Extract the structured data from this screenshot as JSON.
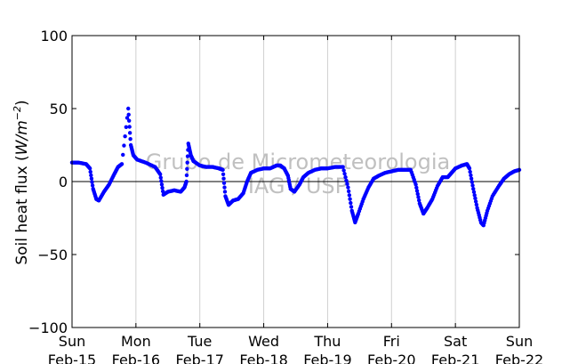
{
  "chart_data": {
    "type": "scatter",
    "ylabel": "Soil heat flux (W/m⁻²)",
    "ylabel_text": "Soil heat flux (",
    "ylabel_math": "W/m",
    "ylabel_exp": "−2",
    "ylabel_close": ")",
    "ylim": [
      -100,
      100
    ],
    "yticks": [
      {
        "value": 100,
        "label": "100"
      },
      {
        "value": 50,
        "label": "50"
      },
      {
        "value": 0,
        "label": "0"
      },
      {
        "value": -50,
        "label": "−50"
      },
      {
        "value": -100,
        "label": "−100"
      }
    ],
    "xlim": [
      0,
      7
    ],
    "xticks": [
      {
        "value": 0,
        "day": "Sun",
        "date": "Feb-15"
      },
      {
        "value": 1,
        "day": "Mon",
        "date": "Feb-16"
      },
      {
        "value": 2,
        "day": "Tue",
        "date": "Feb-17"
      },
      {
        "value": 3,
        "day": "Wed",
        "date": "Feb-18"
      },
      {
        "value": 4,
        "day": "Thu",
        "date": "Feb-19"
      },
      {
        "value": 5,
        "day": "Fri",
        "date": "Feb-20"
      },
      {
        "value": 6,
        "day": "Sat",
        "date": "Feb-21"
      },
      {
        "value": 7,
        "day": "Sun",
        "date": "Feb-22"
      }
    ],
    "grid": "vertical",
    "zero_line": true,
    "marker_color": "#0000ff",
    "watermark": [
      "Grupo de Micrometeorologia",
      "IAG / USP"
    ],
    "series_points": [
      [
        0.0,
        13
      ],
      [
        0.1,
        13
      ],
      [
        0.22,
        12
      ],
      [
        0.28,
        9
      ],
      [
        0.33,
        -5
      ],
      [
        0.38,
        -12
      ],
      [
        0.42,
        -13
      ],
      [
        0.5,
        -7
      ],
      [
        0.58,
        -2
      ],
      [
        0.66,
        5
      ],
      [
        0.72,
        10
      ],
      [
        0.78,
        12
      ],
      [
        0.88,
        50
      ],
      [
        0.92,
        25
      ],
      [
        0.96,
        18
      ],
      [
        1.02,
        15
      ],
      [
        1.15,
        13
      ],
      [
        1.3,
        10
      ],
      [
        1.38,
        5
      ],
      [
        1.43,
        -9
      ],
      [
        1.5,
        -7
      ],
      [
        1.6,
        -6
      ],
      [
        1.7,
        -7
      ],
      [
        1.76,
        -4
      ],
      [
        1.79,
        0
      ],
      [
        1.82,
        26
      ],
      [
        1.86,
        18
      ],
      [
        1.9,
        14
      ],
      [
        2.0,
        11
      ],
      [
        2.1,
        10
      ],
      [
        2.2,
        10
      ],
      [
        2.3,
        9
      ],
      [
        2.36,
        8
      ],
      [
        2.4,
        -10
      ],
      [
        2.45,
        -16
      ],
      [
        2.52,
        -13
      ],
      [
        2.6,
        -12
      ],
      [
        2.68,
        -8
      ],
      [
        2.74,
        0
      ],
      [
        2.8,
        6
      ],
      [
        2.9,
        8
      ],
      [
        3.0,
        9
      ],
      [
        3.1,
        9
      ],
      [
        3.2,
        11
      ],
      [
        3.26,
        11
      ],
      [
        3.32,
        9
      ],
      [
        3.38,
        4
      ],
      [
        3.42,
        -5
      ],
      [
        3.48,
        -7
      ],
      [
        3.56,
        -2
      ],
      [
        3.62,
        3
      ],
      [
        3.7,
        6
      ],
      [
        3.8,
        8
      ],
      [
        3.9,
        9
      ],
      [
        4.0,
        9
      ],
      [
        4.12,
        10
      ],
      [
        4.24,
        10
      ],
      [
        4.32,
        -4
      ],
      [
        4.38,
        -20
      ],
      [
        4.43,
        -28
      ],
      [
        4.48,
        -22
      ],
      [
        4.56,
        -12
      ],
      [
        4.64,
        -4
      ],
      [
        4.72,
        2
      ],
      [
        4.8,
        4
      ],
      [
        4.9,
        6
      ],
      [
        5.0,
        7
      ],
      [
        5.1,
        8
      ],
      [
        5.2,
        8
      ],
      [
        5.3,
        8
      ],
      [
        5.38,
        -2
      ],
      [
        5.44,
        -15
      ],
      [
        5.5,
        -22
      ],
      [
        5.56,
        -18
      ],
      [
        5.64,
        -12
      ],
      [
        5.72,
        -3
      ],
      [
        5.8,
        3
      ],
      [
        5.88,
        3
      ],
      [
        5.94,
        6
      ],
      [
        6.0,
        9
      ],
      [
        6.1,
        11
      ],
      [
        6.18,
        12
      ],
      [
        6.22,
        9
      ],
      [
        6.28,
        -5
      ],
      [
        6.34,
        -18
      ],
      [
        6.4,
        -28
      ],
      [
        6.44,
        -30
      ],
      [
        6.5,
        -20
      ],
      [
        6.58,
        -10
      ],
      [
        6.68,
        -3
      ],
      [
        6.76,
        2
      ],
      [
        6.84,
        5
      ],
      [
        6.92,
        7
      ],
      [
        7.0,
        8
      ]
    ]
  }
}
